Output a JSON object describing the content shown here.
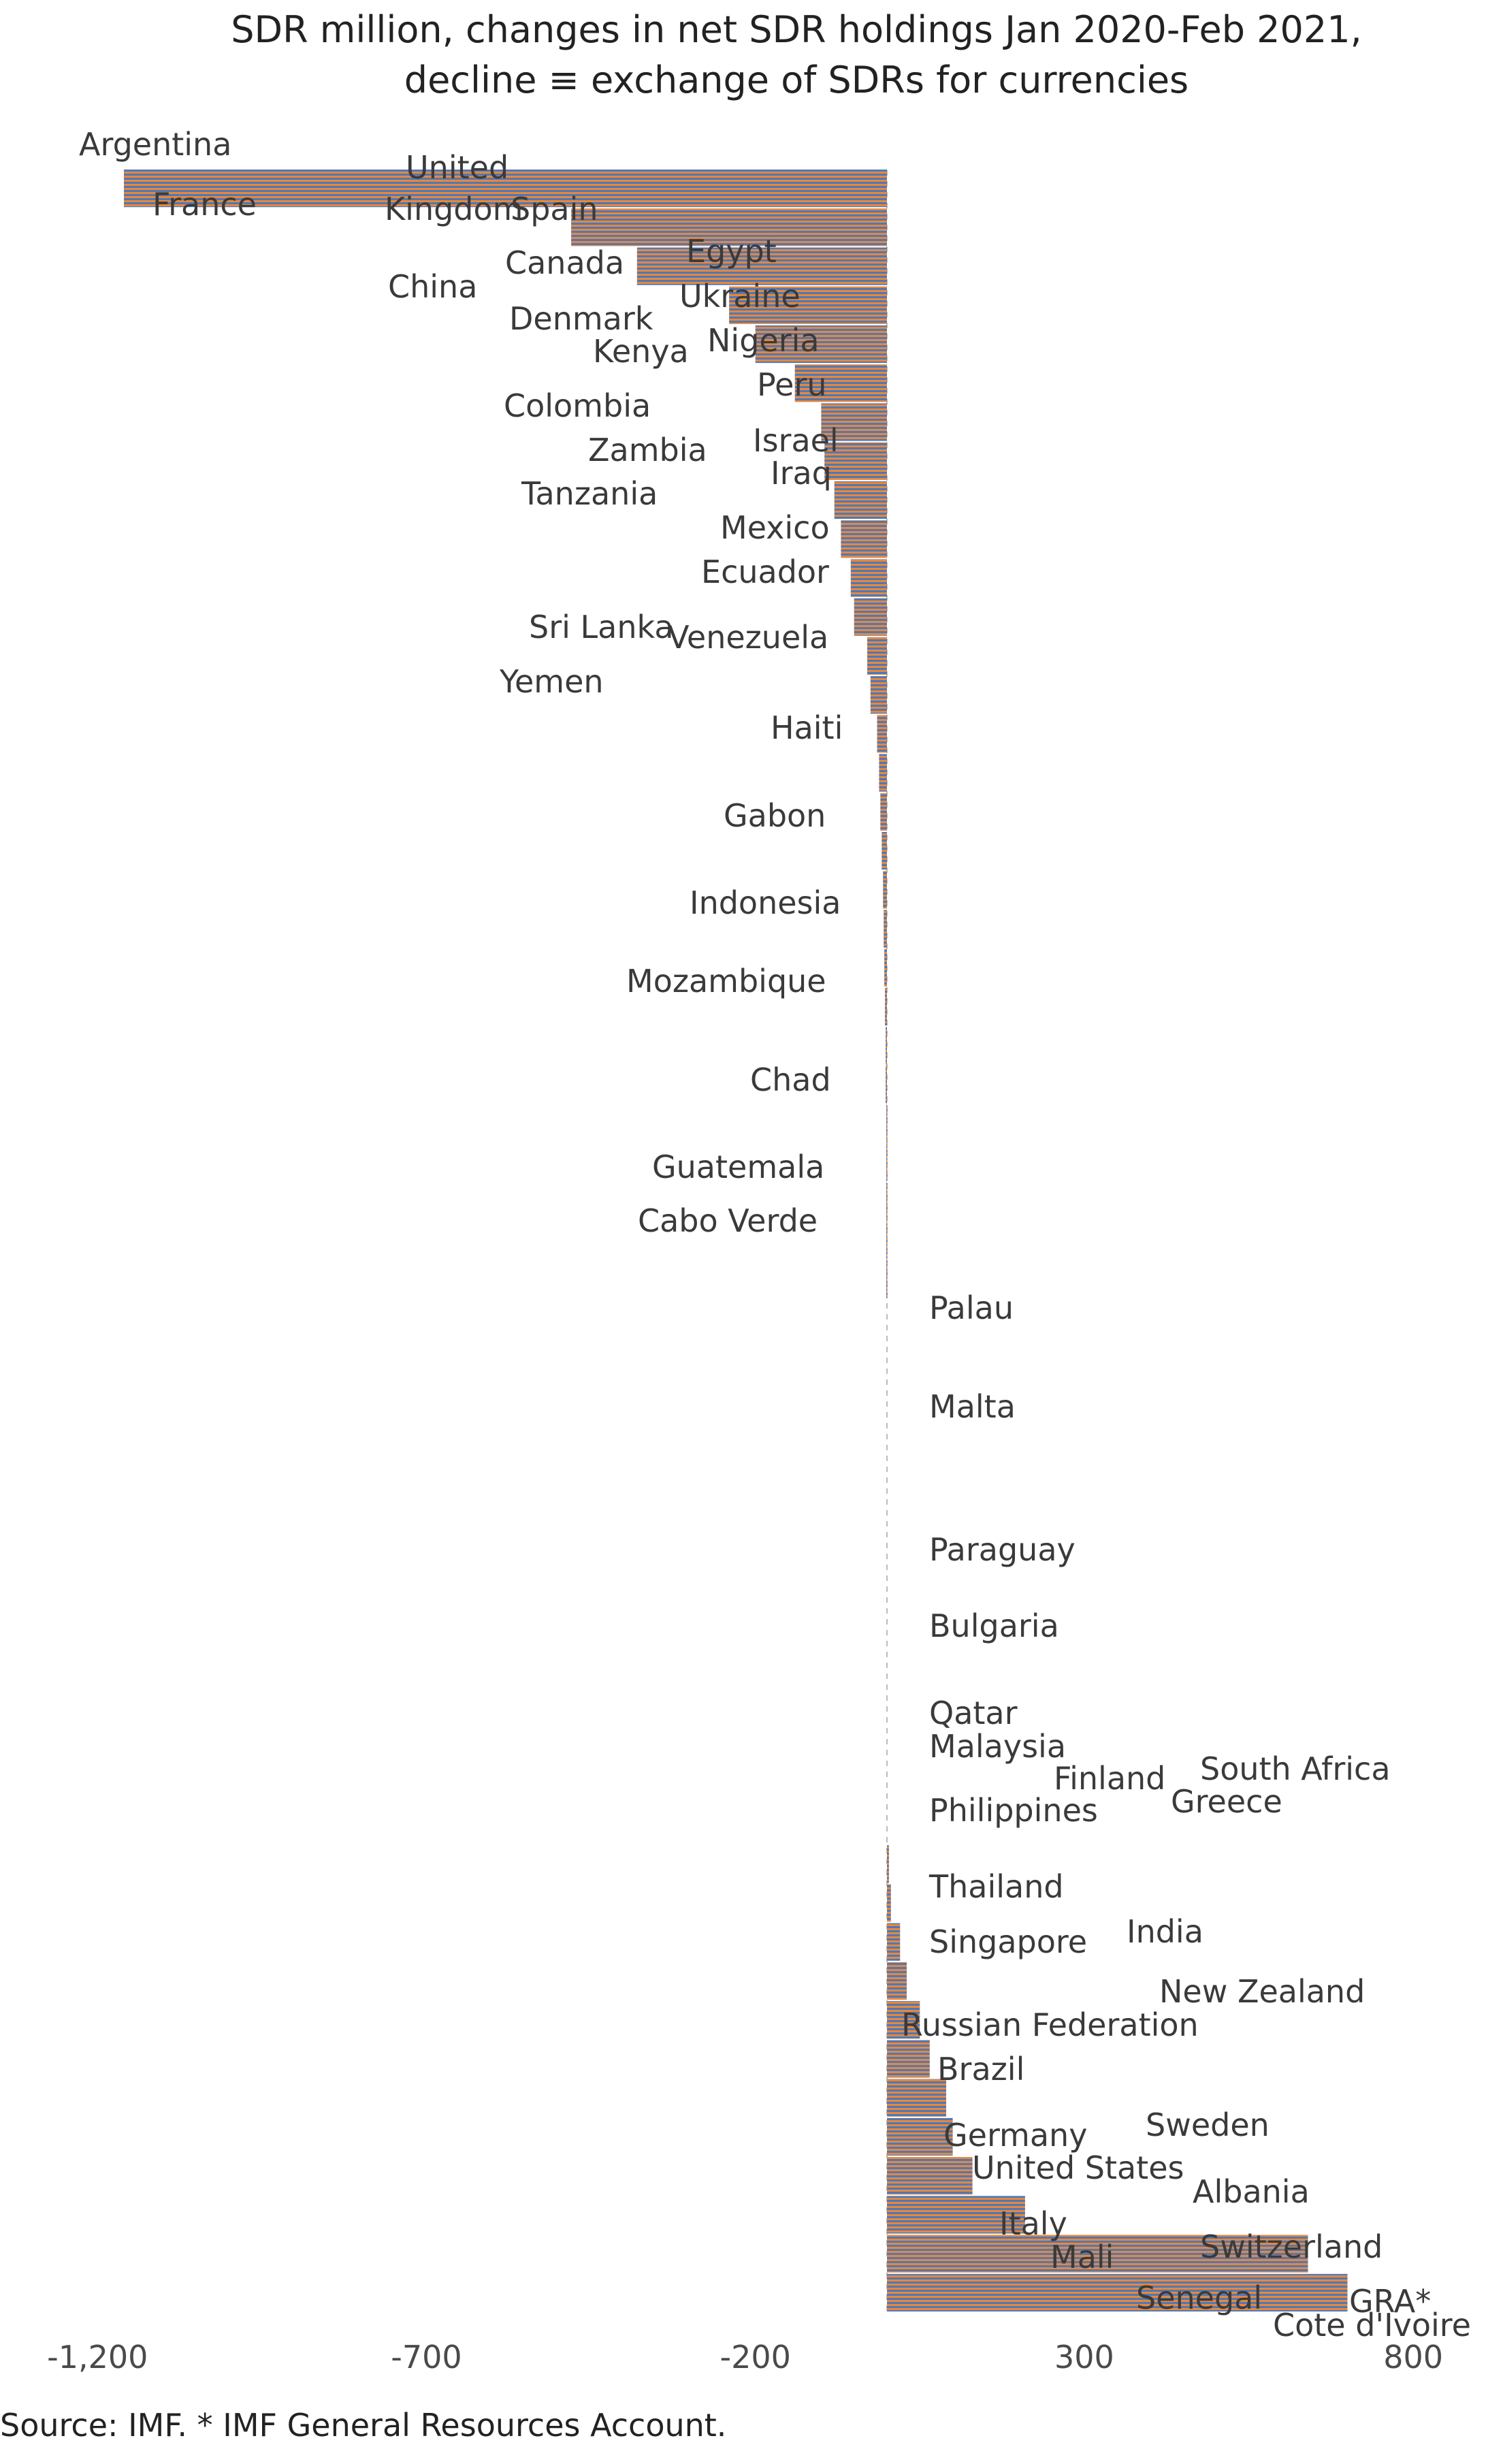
{
  "title": {
    "line1": "SDR million, changes in net SDR holdings Jan 2020-Feb 2021,",
    "line2": "decline ≡ exchange of SDRs for currencies"
  },
  "source": "Source: IMF. * IMF General Resources Account.",
  "colors": {
    "stripe_orange": "#e8873a",
    "stripe_blue": "#4e79b8",
    "axis_dash": "#bbbbbb",
    "text": "#3a3a3a"
  },
  "chart_data": {
    "type": "bar",
    "orientation": "horizontal",
    "x_ticks": [
      {
        "value": -1200,
        "label": "-1,200"
      },
      {
        "value": -700,
        "label": "-700"
      },
      {
        "value": -200,
        "label": "-200"
      },
      {
        "value": 300,
        "label": "300"
      },
      {
        "value": 800,
        "label": "800"
      }
    ],
    "xlim": [
      -1300,
      900
    ],
    "grid": false,
    "legend": "none",
    "categories": [
      "Argentina",
      "United Kingdom",
      "France",
      "Spain",
      "China",
      "Canada",
      "Egypt",
      "Denmark",
      "Ukraine",
      "Kenya",
      "Nigeria",
      "Colombia",
      "Peru",
      "Zambia",
      "Israel",
      "Tanzania",
      "Iraq",
      "Mexico",
      "Ecuador",
      "Sri Lanka",
      "Venezuela",
      "Yemen",
      "Haiti",
      "Gabon",
      "Indonesia",
      "Mozambique",
      "Chad",
      "Guatemala",
      "Cabo Verde",
      "Palau",
      "Malta",
      "Paraguay",
      "Bulgaria",
      "Qatar",
      "Malaysia",
      "Finland",
      "South Africa",
      "Philippines",
      "Greece",
      "Thailand",
      "India",
      "Singapore",
      "New Zealand",
      "Russian Federation",
      "Brazil",
      "Germany",
      "Sweden",
      "United States",
      "Albania",
      "Italy",
      "Switzerland",
      "Mali",
      "Senegal",
      "GRA*",
      "Cote d'Ivoire"
    ],
    "values": [
      -1160,
      -480,
      -380,
      -240,
      -200,
      -140,
      -100,
      -95,
      -80,
      -70,
      -55,
      -50,
      -30,
      -25,
      -15,
      -12,
      -10,
      -8,
      -6,
      -5,
      -4,
      -3,
      -2,
      -2,
      -1,
      -1,
      -1,
      -1,
      -1,
      0,
      0,
      0,
      0,
      0,
      0,
      0,
      0,
      0,
      0,
      0,
      0,
      0,
      0,
      3,
      6,
      20,
      30,
      50,
      65,
      90,
      100,
      130,
      210,
      640,
      700
    ],
    "annotations": [
      {
        "text": "Argentina",
        "index": 0
      },
      {
        "text": "United",
        "index": 1
      },
      {
        "text": "Kingdom",
        "index": 1
      },
      {
        "text": "France",
        "index": 2
      },
      {
        "text": "Spain",
        "index": 3
      },
      {
        "text": "China",
        "index": 4
      },
      {
        "text": "Canada",
        "index": 5
      },
      {
        "text": "Egypt",
        "index": 6
      },
      {
        "text": "Denmark",
        "index": 7
      },
      {
        "text": "Ukraine",
        "index": 8
      },
      {
        "text": "Kenya",
        "index": 9
      },
      {
        "text": "Nigeria",
        "index": 10
      },
      {
        "text": "Colombia",
        "index": 11
      },
      {
        "text": "Peru",
        "index": 12
      },
      {
        "text": "Zambia",
        "index": 13
      },
      {
        "text": "Israel",
        "index": 14
      },
      {
        "text": "Tanzania",
        "index": 15
      },
      {
        "text": "Iraq",
        "index": 16
      },
      {
        "text": "Mexico",
        "index": 17
      },
      {
        "text": "Ecuador",
        "index": 18
      },
      {
        "text": "Sri Lanka",
        "index": 19
      },
      {
        "text": "Venezuela",
        "index": 20
      },
      {
        "text": "Yemen",
        "index": 21
      },
      {
        "text": "Haiti",
        "index": 22
      },
      {
        "text": "Gabon",
        "index": 23
      },
      {
        "text": "Indonesia",
        "index": 24
      },
      {
        "text": "Mozambique",
        "index": 25
      },
      {
        "text": "Chad",
        "index": 26
      },
      {
        "text": "Guatemala",
        "index": 27
      },
      {
        "text": "Cabo Verde",
        "index": 28
      },
      {
        "text": "Palau",
        "index": 29
      },
      {
        "text": "Malta",
        "index": 30
      },
      {
        "text": "Paraguay",
        "index": 31
      },
      {
        "text": "Bulgaria",
        "index": 32
      },
      {
        "text": "Qatar",
        "index": 33
      },
      {
        "text": "Malaysia",
        "index": 34
      },
      {
        "text": "Finland",
        "index": 35
      },
      {
        "text": "South Africa",
        "index": 36
      },
      {
        "text": "Philippines",
        "index": 37
      },
      {
        "text": "Greece",
        "index": 38
      },
      {
        "text": "Thailand",
        "index": 39
      },
      {
        "text": "India",
        "index": 40
      },
      {
        "text": "Singapore",
        "index": 41
      },
      {
        "text": "New Zealand",
        "index": 42
      },
      {
        "text": "Russian Federation",
        "index": 43
      },
      {
        "text": "Brazil",
        "index": 44
      },
      {
        "text": "Germany",
        "index": 45
      },
      {
        "text": "Sweden",
        "index": 46
      },
      {
        "text": "United States",
        "index": 47
      },
      {
        "text": "Albania",
        "index": 48
      },
      {
        "text": "Italy",
        "index": 49
      },
      {
        "text": "Switzerland",
        "index": 50
      },
      {
        "text": "Mali",
        "index": 51
      },
      {
        "text": "Senegal",
        "index": 52
      },
      {
        "text": "GRA*",
        "index": 53
      },
      {
        "text": "Cote d'Ivoire",
        "index": 54
      }
    ]
  }
}
